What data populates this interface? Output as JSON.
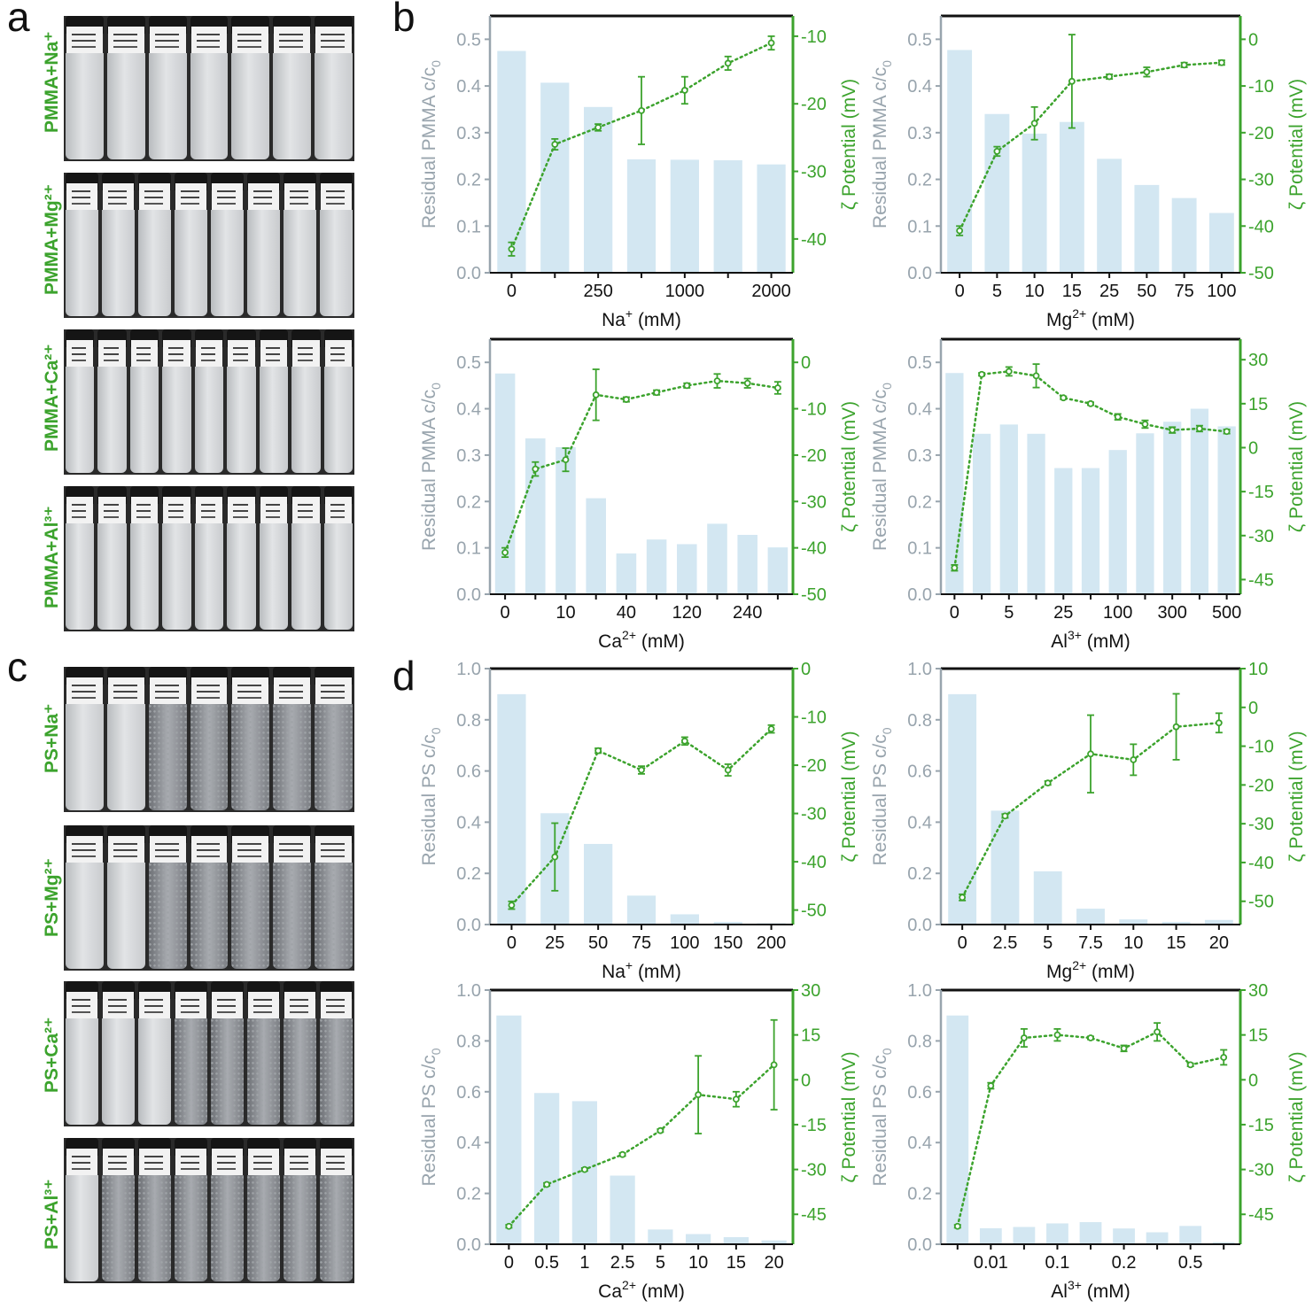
{
  "panels": {
    "a": "a",
    "b": "b",
    "c": "c",
    "d": "d"
  },
  "photos": [
    {
      "label": "PMMA+Na⁺",
      "vials": 7,
      "turbid": [
        1,
        1,
        1,
        1,
        1,
        1,
        1
      ]
    },
    {
      "label": "PMMA+Mg²⁺",
      "vials": 8,
      "turbid": [
        1,
        1,
        1,
        1,
        1,
        1,
        1,
        1
      ]
    },
    {
      "label": "PMMA+Ca²⁺",
      "vials": 9,
      "turbid": [
        1,
        1,
        1,
        1,
        1,
        1,
        1,
        1,
        1
      ]
    },
    {
      "label": "PMMA+Al³⁺",
      "vials": 9,
      "turbid": [
        1,
        1,
        1,
        1,
        1,
        1,
        1,
        1,
        1
      ]
    },
    {
      "label": "PS+Na⁺",
      "vials": 7,
      "turbid": [
        1,
        1,
        0,
        0,
        0,
        0,
        0
      ]
    },
    {
      "label": "PS+Mg²⁺",
      "vials": 7,
      "turbid": [
        1,
        1,
        0,
        0,
        0,
        0,
        0
      ]
    },
    {
      "label": "PS+Ca²⁺",
      "vials": 8,
      "turbid": [
        1,
        1,
        1,
        0,
        0,
        0,
        0,
        0
      ]
    },
    {
      "label": "PS+Al³⁺",
      "vials": 8,
      "turbid": [
        1,
        0,
        0,
        0,
        0,
        0,
        0,
        0
      ]
    }
  ],
  "colors": {
    "bar": "#d3e7f2",
    "zeta": "#3ca32d",
    "left_axis_text": "#98a4ad",
    "frame": "#111111"
  },
  "chart_data": [
    {
      "type": "bar",
      "id": "b-na",
      "categories": [
        "0",
        "",
        "250",
        "",
        "1000",
        "",
        "2000"
      ],
      "values": [
        0.475,
        0.407,
        0.355,
        0.243,
        0.242,
        0.241,
        0.232
      ],
      "zeta": [
        -41.5,
        -26,
        -23.5,
        -21,
        -18,
        -14,
        -11
      ],
      "zeta_err": [
        1,
        0.8,
        0.5,
        5,
        2,
        1,
        1
      ],
      "xlabel_base": "Na",
      "xlabel_sup": "+",
      "xlabel_unit": " (mM)",
      "ylabel": "Residual PMMA c/c",
      "ylabel_sub": "0",
      "y2label": "ζ Potential (mV)",
      "ylim": [
        0,
        0.55
      ],
      "yticks": [
        "0.0",
        "0.1",
        "0.2",
        "0.3",
        "0.4",
        "0.5"
      ],
      "ytick_values": [
        0,
        0.1,
        0.2,
        0.3,
        0.4,
        0.5
      ],
      "y2lim": [
        -45,
        -7
      ],
      "y2ticks": [
        -40,
        -30,
        -20,
        -10
      ]
    },
    {
      "type": "bar",
      "id": "b-mg",
      "categories": [
        "0",
        "5",
        "10",
        "15",
        "25",
        "50",
        "75",
        "100"
      ],
      "values": [
        0.477,
        0.34,
        0.298,
        0.323,
        0.244,
        0.188,
        0.16,
        0.128
      ],
      "zeta": [
        -41,
        -24,
        -18,
        -9,
        -8,
        -7,
        -5.5,
        -5
      ],
      "zeta_err": [
        1,
        1,
        3.5,
        10,
        0.5,
        1,
        0.5,
        0.5
      ],
      "xlabel_base": "Mg",
      "xlabel_sup": "2+",
      "xlabel_unit": " (mM)",
      "ylabel": "Residual PMMA c/c",
      "ylabel_sub": "0",
      "y2label": "ζ Potential (mV)",
      "ylim": [
        0,
        0.55
      ],
      "yticks": [
        "0.0",
        "0.1",
        "0.2",
        "0.3",
        "0.4",
        "0.5"
      ],
      "ytick_values": [
        0,
        0.1,
        0.2,
        0.3,
        0.4,
        0.5
      ],
      "y2lim": [
        -50,
        5
      ],
      "y2ticks": [
        -50,
        -40,
        -30,
        -20,
        -10,
        0
      ]
    },
    {
      "type": "bar",
      "id": "b-ca",
      "categories": [
        "0",
        "",
        "10",
        "",
        "40",
        "",
        "120",
        "",
        "240",
        ""
      ],
      "values": [
        0.476,
        0.336,
        0.317,
        0.207,
        0.088,
        0.118,
        0.108,
        0.152,
        0.128,
        0.101
      ],
      "zeta": [
        -41,
        -23,
        -21,
        -7,
        -8,
        -6.5,
        -5,
        -4,
        -4.5,
        -5.5
      ],
      "zeta_err": [
        1,
        1.5,
        2.5,
        5.5,
        0.5,
        0.5,
        0.5,
        1.5,
        1,
        1.3
      ],
      "xlabel_base": "Ca",
      "xlabel_sup": "2+",
      "xlabel_unit": " (mM)",
      "ylabel": "Residual PMMA c/c",
      "ylabel_sub": "0",
      "y2label": "ζ Potential (mV)",
      "ylim": [
        0,
        0.55
      ],
      "yticks": [
        "0.0",
        "0.1",
        "0.2",
        "0.3",
        "0.4",
        "0.5"
      ],
      "ytick_values": [
        0,
        0.1,
        0.2,
        0.3,
        0.4,
        0.5
      ],
      "y2lim": [
        -50,
        5
      ],
      "y2ticks": [
        -50,
        -40,
        -30,
        -20,
        -10,
        0
      ]
    },
    {
      "type": "bar",
      "id": "b-al",
      "categories": [
        "0",
        "",
        "5",
        "",
        "25",
        "",
        "100",
        "",
        "300",
        "",
        "500"
      ],
      "values": [
        0.477,
        0.346,
        0.366,
        0.346,
        0.272,
        0.272,
        0.311,
        0.347,
        0.372,
        0.4,
        0.362
      ],
      "zeta": [
        -41,
        25,
        26,
        24.5,
        17,
        15,
        10.5,
        8,
        6,
        6.5,
        5.5
      ],
      "zeta_err": [
        1,
        0.5,
        1.5,
        4,
        0.5,
        0.5,
        1,
        1.3,
        1,
        1,
        0.7
      ],
      "xlabel_base": "Al",
      "xlabel_sup": "3+",
      "xlabel_unit": " (mM)",
      "ylabel": "Residual PMMA c/c",
      "ylabel_sub": "0",
      "y2label": "ζ Potential (mV)",
      "ylim": [
        0,
        0.55
      ],
      "yticks": [
        "0.0",
        "0.1",
        "0.2",
        "0.3",
        "0.4",
        "0.5"
      ],
      "ytick_values": [
        0,
        0.1,
        0.2,
        0.3,
        0.4,
        0.5
      ],
      "y2lim": [
        -50,
        37
      ],
      "y2ticks": [
        -45,
        -30,
        -15,
        0,
        15,
        30
      ]
    },
    {
      "type": "bar",
      "id": "d-na",
      "categories": [
        "0",
        "25",
        "50",
        "75",
        "100",
        "150",
        "200"
      ],
      "values": [
        0.9,
        0.435,
        0.315,
        0.113,
        0.04,
        0.01,
        0.005
      ],
      "zeta": [
        -49,
        -39,
        -17,
        -21,
        -15,
        -21,
        -12.5
      ],
      "zeta_err": [
        0.8,
        7,
        0.5,
        0.8,
        0.8,
        1.2,
        0.8
      ],
      "xlabel_base": "Na",
      "xlabel_sup": "+",
      "xlabel_unit": " (mM)",
      "ylabel": "Residual PS c/c",
      "ylabel_sub": "0",
      "y2label": "ζ Potential (mV)",
      "ylim": [
        0,
        1.0
      ],
      "yticks": [
        "0.0",
        "0.2",
        "0.4",
        "0.6",
        "0.8",
        "1.0"
      ],
      "ytick_values": [
        0,
        0.2,
        0.4,
        0.6,
        0.8,
        1.0
      ],
      "y2lim": [
        -53,
        0
      ],
      "y2ticks": [
        -50,
        -40,
        -30,
        -20,
        -10,
        0
      ]
    },
    {
      "type": "bar",
      "id": "d-mg",
      "categories": [
        "0",
        "2.5",
        "5",
        "7.5",
        "10",
        "15",
        "20"
      ],
      "values": [
        0.9,
        0.445,
        0.208,
        0.062,
        0.02,
        0.01,
        0.018
      ],
      "zeta": [
        -49,
        -28,
        -19.5,
        -12,
        -13.5,
        -5,
        -4
      ],
      "zeta_err": [
        0.8,
        0.5,
        0.5,
        10,
        4,
        8.5,
        2.5
      ],
      "xlabel_base": "Mg",
      "xlabel_sup": "2+",
      "xlabel_unit": " (mM)",
      "ylabel": "Residual PS c/c",
      "ylabel_sub": "0",
      "y2label": "ζ Potential (mV)",
      "ylim": [
        0,
        1.0
      ],
      "yticks": [
        "0.0",
        "0.2",
        "0.4",
        "0.6",
        "0.8",
        "1.0"
      ],
      "ytick_values": [
        0,
        0.2,
        0.4,
        0.6,
        0.8,
        1.0
      ],
      "y2lim": [
        -56,
        10
      ],
      "y2ticks": [
        -50,
        -40,
        -30,
        -20,
        -10,
        0,
        10
      ]
    },
    {
      "type": "bar",
      "id": "d-ca",
      "categories": [
        "0",
        "0.5",
        "1",
        "2.5",
        "5",
        "10",
        "15",
        "20"
      ],
      "values": [
        0.9,
        0.595,
        0.563,
        0.27,
        0.058,
        0.04,
        0.028,
        0.015
      ],
      "zeta": [
        -49,
        -35,
        -30,
        -25,
        -17,
        -5,
        -6.5,
        5
      ],
      "zeta_err": [
        0.5,
        0.5,
        0.5,
        0.5,
        0.5,
        13,
        2.5,
        15
      ],
      "xlabel_base": "Ca",
      "xlabel_sup": "2+",
      "xlabel_unit": " (mM)",
      "ylabel": "Residual PS c/c",
      "ylabel_sub": "0",
      "y2label": "ζ Potential (mV)",
      "ylim": [
        0,
        1.0
      ],
      "yticks": [
        "0.0",
        "0.2",
        "0.4",
        "0.6",
        "0.8",
        "1.0"
      ],
      "ytick_values": [
        0,
        0.2,
        0.4,
        0.6,
        0.8,
        1.0
      ],
      "y2lim": [
        -55,
        30
      ],
      "y2ticks": [
        -45,
        -30,
        -15,
        0,
        15,
        30
      ]
    },
    {
      "type": "bar",
      "id": "d-al",
      "categories": [
        "",
        "0.01",
        "",
        "0.1",
        "",
        "0.2",
        "",
        "0.5",
        ""
      ],
      "values": [
        0.9,
        0.063,
        0.068,
        0.082,
        0.087,
        0.062,
        0.047,
        0.072,
        0.008
      ],
      "zeta": [
        -49,
        -2,
        14,
        15,
        14,
        10.5,
        16,
        5,
        7.5
      ],
      "zeta_err": [
        0.5,
        1,
        3,
        2,
        0.5,
        1,
        3,
        0.5,
        2.5
      ],
      "xlabel_base": "Al",
      "xlabel_sup": "3+",
      "xlabel_unit": " (mM)",
      "ylabel": "Residual PS c/c",
      "ylabel_sub": "0",
      "y2label": "ζ Potential (mV)",
      "ylim": [
        0,
        1.0
      ],
      "yticks": [
        "0.0",
        "0.2",
        "0.4",
        "0.6",
        "0.8",
        "1.0"
      ],
      "ytick_values": [
        0,
        0.2,
        0.4,
        0.6,
        0.8,
        1.0
      ],
      "y2lim": [
        -55,
        30
      ],
      "y2ticks": [
        -45,
        -30,
        -15,
        0,
        15,
        30
      ]
    }
  ]
}
